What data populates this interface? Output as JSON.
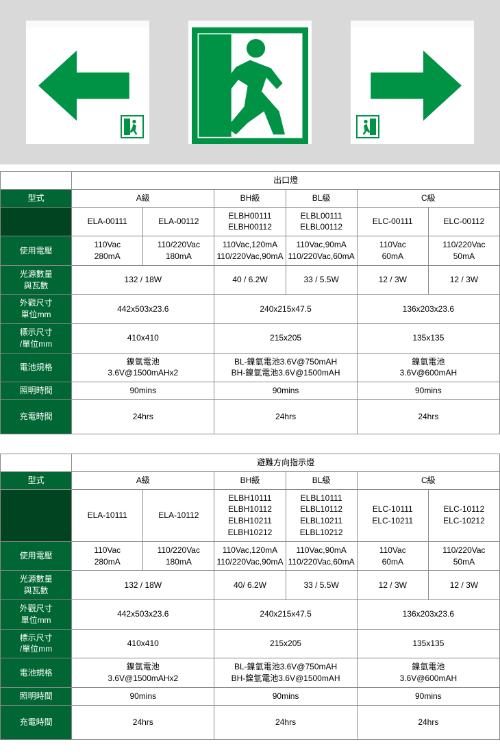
{
  "colors": {
    "green": "#009245",
    "header_bg": "#006633",
    "header_bg_dark": "#004422",
    "border": "#888888",
    "hero_bg": "#d9d9d9"
  },
  "tables": [
    {
      "title": "出口燈",
      "type_label": "型式",
      "grades": [
        "A級",
        "BH級",
        "BL級",
        "C級"
      ],
      "grade_spans": [
        2,
        1,
        1,
        2
      ],
      "models": [
        "ELA-00111",
        "ELA-00112",
        "ELBH00111\nELBH00112",
        "ELBL00111\nELBL00112",
        "ELC-00111",
        "ELC-00112"
      ],
      "rows": [
        {
          "label": "使用電壓",
          "cells": [
            "110Vac\n280mA",
            "110/220Vac\n180mA",
            "110Vac,120mA\n110/220Vac,90mA",
            "110Vac,90mA\n110/220Vac,60mA",
            "110Vac\n60mA",
            "110/220Vac\n50mA"
          ],
          "spans": [
            1,
            1,
            1,
            1,
            1,
            1
          ]
        },
        {
          "label": "光源數量\n與瓦數",
          "cells": [
            "132 / 18W",
            "40 / 6.2W",
            "33 / 5.5W",
            "12 / 3W",
            "12 / 3W"
          ],
          "spans": [
            2,
            1,
            1,
            1,
            1
          ]
        },
        {
          "label": "外觀尺寸\n單位mm",
          "cells": [
            "442x503x23.6",
            "240x215x47.5",
            "136x203x23.6"
          ],
          "spans": [
            2,
            2,
            2
          ]
        },
        {
          "label": "標示尺寸\n/單位mm",
          "cells": [
            "410x410",
            "215x205",
            "135x135"
          ],
          "spans": [
            2,
            2,
            2
          ]
        },
        {
          "label": "電池規格",
          "cells": [
            "鎳氫電池\n3.6V@1500mAHx2",
            "BL-鎳氫電池3.6V@750mAH\nBH-鎳氫電池3.6V@1500mAH",
            "鎳氫電池\n3.6V@600mAH"
          ],
          "spans": [
            2,
            2,
            2
          ]
        },
        {
          "label": "照明時間",
          "cells": [
            "90mins",
            "90mins",
            "90mins"
          ],
          "spans": [
            2,
            2,
            2
          ]
        },
        {
          "label": "充電時間",
          "cells": [
            "24hrs",
            "24hrs",
            "24hrs"
          ],
          "spans": [
            2,
            2,
            2
          ],
          "tall": true
        }
      ]
    },
    {
      "title": "避難方向指示燈",
      "type_label": "型式",
      "grades": [
        "A級",
        "BH級",
        "BL級",
        "C級"
      ],
      "grade_spans": [
        2,
        1,
        1,
        2
      ],
      "models": [
        "ELA-10111",
        "ELA-10112",
        "ELBH10111\nELBH10112\nELBH10211\nELBH10212",
        "ELBL10111\nELBL10112 ELBL10211\nELBL10212",
        "ELC-10111\nELC-10211",
        "ELC-10112\nELC-10212"
      ],
      "rows": [
        {
          "label": "使用電壓",
          "cells": [
            "110Vac\n280mA",
            "110/220Vac\n180mA",
            "110Vac,120mA\n110/220Vac,90mA",
            "110Vac,90mA\n110/220Vac,60mA",
            "110Vac\n60mA",
            "110/220Vac\n50mA"
          ],
          "spans": [
            1,
            1,
            1,
            1,
            1,
            1
          ]
        },
        {
          "label": "光源數量\n與瓦數",
          "cells": [
            "132 / 18W",
            "40/ 6.2W",
            "33 / 5.5W",
            "12 / 3W",
            "12 / 3W"
          ],
          "spans": [
            2,
            1,
            1,
            1,
            1
          ]
        },
        {
          "label": "外觀尺寸\n單位mm",
          "cells": [
            "442x503x23.6",
            "240x215x47.5",
            "136x203x23.6"
          ],
          "spans": [
            2,
            2,
            2
          ]
        },
        {
          "label": "標示尺寸\n/單位mm",
          "cells": [
            "410x410",
            "215x205",
            "135x135"
          ],
          "spans": [
            2,
            2,
            2
          ]
        },
        {
          "label": "電池規格",
          "cells": [
            "鎳氫電池\n3.6V@1500mAHx2",
            "BL-鎳氫電池3.6V@750mAH\nBH-鎳氫電池3.6V@1500mAH",
            "鎳氫電池\n3.6V@600mAH"
          ],
          "spans": [
            2,
            2,
            2
          ]
        },
        {
          "label": "照明時間",
          "cells": [
            "90mins",
            "90mins",
            "90mins"
          ],
          "spans": [
            2,
            2,
            2
          ]
        },
        {
          "label": "充電時間",
          "cells": [
            "24hrs",
            "24hrs",
            "24hrs"
          ],
          "spans": [
            2,
            2,
            2
          ],
          "tall": true
        }
      ]
    }
  ]
}
